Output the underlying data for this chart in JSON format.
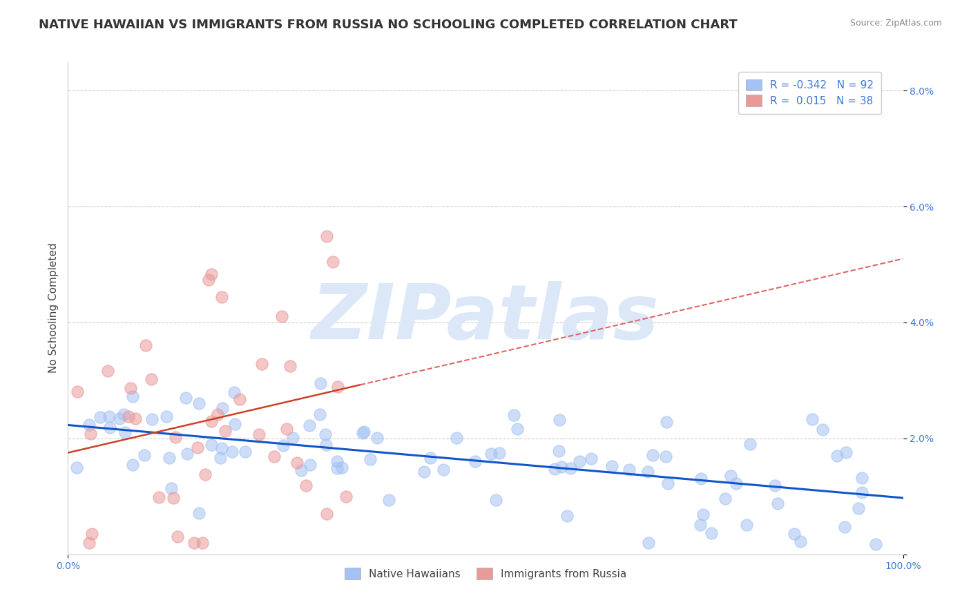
{
  "title": "NATIVE HAWAIIAN VS IMMIGRANTS FROM RUSSIA NO SCHOOLING COMPLETED CORRELATION CHART",
  "source_text": "Source: ZipAtlas.com",
  "ylabel": "No Schooling Completed",
  "xlim": [
    0,
    100
  ],
  "ylim": [
    0,
    8.5
  ],
  "legend_r_blue": "-0.342",
  "legend_n_blue": "92",
  "legend_r_pink": "0.015",
  "legend_n_pink": "38",
  "blue_color": "#a4c2f4",
  "pink_color": "#ea9999",
  "blue_line_color": "#1155cc",
  "pink_line_color": "#cc4125",
  "pink_line_color_dashed": "#e06666",
  "watermark_text": "ZIPatlas",
  "watermark_color": "#dce8f8",
  "background_color": "#ffffff",
  "grid_color": "#cccccc",
  "text_color": "#444444",
  "axis_label_color": "#3c78d8",
  "title_color": "#333333"
}
